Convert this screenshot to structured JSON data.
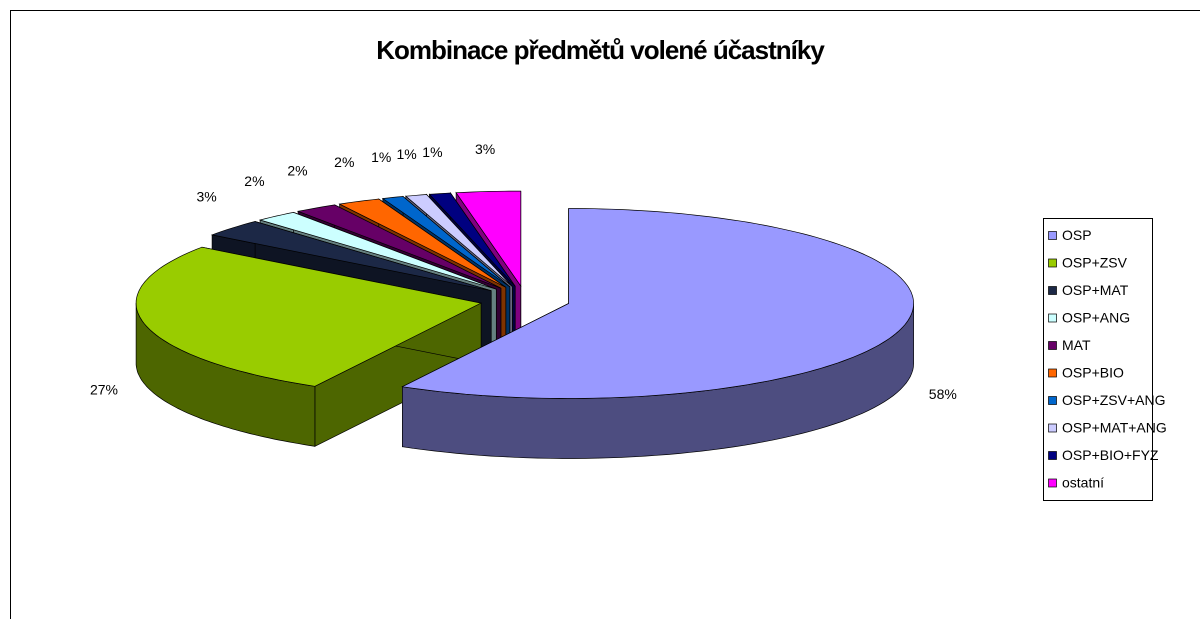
{
  "chart_data": {
    "type": "pie3d",
    "title": "Kombinace předmětů volené účastníky",
    "categories": [
      "OSP",
      "OSP+ZSV",
      "OSP+MAT",
      "OSP+ANG",
      "MAT",
      "OSP+BIO",
      "OSP+ZSV+ANG",
      "OSP+MAT+ANG",
      "OSP+BIO+FYZ",
      "ostatní"
    ],
    "values": [
      58,
      27,
      3,
      2,
      2,
      2,
      1,
      1,
      1,
      3
    ],
    "value_labels": [
      "58%",
      "27%",
      "3%",
      "2%",
      "2%",
      "2%",
      "1%",
      "1%",
      "1%",
      "3%"
    ],
    "colors": [
      "#9999ff",
      "#99cc00",
      "#1c2846",
      "#ccffff",
      "#660066",
      "#ff6600",
      "#0066cc",
      "#ccccff",
      "#000080",
      "#ff00ff"
    ],
    "legend": "right"
  }
}
